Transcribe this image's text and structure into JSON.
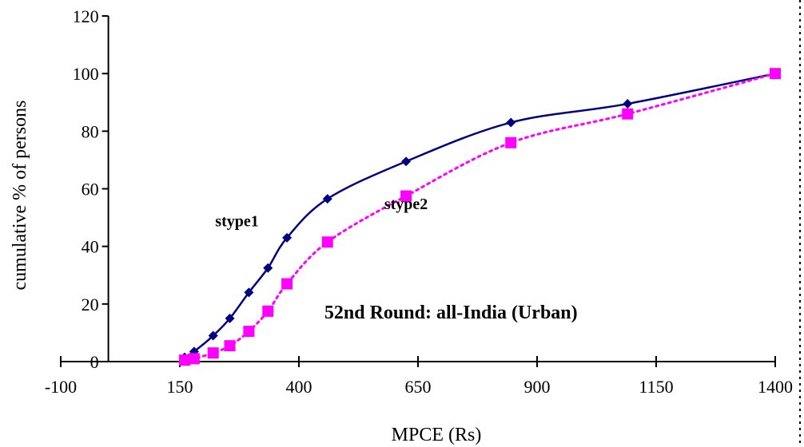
{
  "chart_data": {
    "type": "line",
    "title": "",
    "xlabel": "MPCE (Rs)",
    "ylabel": "cumulative % of persons",
    "xlim": [
      -100,
      1400
    ],
    "ylim": [
      0,
      120
    ],
    "x_ticks": [
      -100,
      150,
      400,
      650,
      900,
      1150,
      1400
    ],
    "y_ticks": [
      0,
      20,
      40,
      60,
      80,
      100,
      120
    ],
    "grid": false,
    "legend": "none",
    "series": [
      {
        "name": "stype1",
        "color": "#000080",
        "marker": "diamond",
        "line": "solid",
        "x": [
          160,
          180,
          220,
          255,
          295,
          335,
          375,
          460,
          625,
          845,
          1090,
          1400
        ],
        "y": [
          1.5,
          3.5,
          9,
          15,
          24,
          32.5,
          43,
          56.5,
          69.5,
          83,
          89.5,
          100
        ]
      },
      {
        "name": "stype2",
        "color": "#FF00FF",
        "marker": "square",
        "line": "dotted",
        "x": [
          160,
          180,
          220,
          255,
          295,
          335,
          375,
          460,
          625,
          845,
          1090,
          1400
        ],
        "y": [
          0.5,
          1,
          3,
          5.5,
          10.5,
          17.5,
          27,
          41.5,
          57.5,
          76,
          86,
          100
        ]
      }
    ],
    "annotations": [
      {
        "text": "stype1",
        "x": 270,
        "y": 47
      },
      {
        "text": "stype2",
        "x": 625,
        "y": 53
      },
      {
        "text": "52nd Round: all-India (Urban)",
        "x": 985,
        "y": 15
      }
    ]
  }
}
